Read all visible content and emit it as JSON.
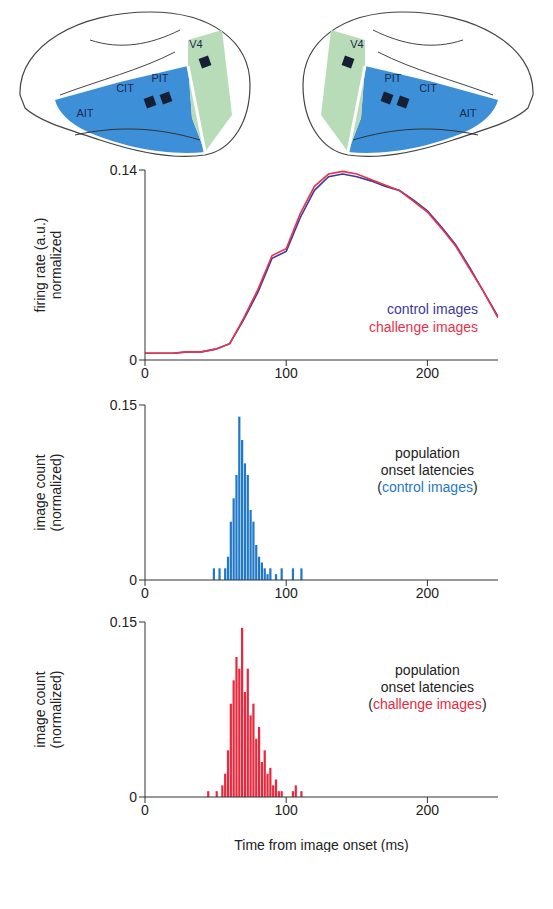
{
  "diagram": {
    "hemispheres": [
      {
        "regions": [
          "V4",
          "PIT",
          "CIT",
          "AIT"
        ]
      },
      {
        "regions": [
          "V4",
          "PIT",
          "CIT",
          "AIT"
        ]
      }
    ]
  },
  "chart_data": [
    {
      "type": "line",
      "ylabel": "firing rate (a.u.) normalized",
      "x": [
        0,
        10,
        20,
        30,
        40,
        50,
        60,
        70,
        80,
        90,
        100,
        110,
        120,
        130,
        140,
        150,
        160,
        170,
        180,
        190,
        200,
        210,
        220,
        230,
        240,
        250
      ],
      "series": [
        {
          "name": "control images",
          "color": "#3a3aa0",
          "values": [
            0.005,
            0.005,
            0.005,
            0.006,
            0.006,
            0.008,
            0.012,
            0.03,
            0.05,
            0.075,
            0.08,
            0.105,
            0.125,
            0.135,
            0.137,
            0.135,
            0.132,
            0.128,
            0.125,
            0.118,
            0.11,
            0.098,
            0.085,
            0.068,
            0.05,
            0.032
          ]
        },
        {
          "name": "challenge images",
          "color": "#e8334a",
          "values": [
            0.005,
            0.005,
            0.005,
            0.006,
            0.006,
            0.008,
            0.012,
            0.031,
            0.052,
            0.077,
            0.082,
            0.108,
            0.128,
            0.137,
            0.139,
            0.137,
            0.133,
            0.129,
            0.125,
            0.117,
            0.109,
            0.097,
            0.084,
            0.067,
            0.05,
            0.031
          ]
        }
      ],
      "xlim": [
        0,
        250
      ],
      "xticks": [
        0,
        100,
        200
      ],
      "ylim": [
        0,
        0.14
      ],
      "yticks": [
        0,
        0.14
      ],
      "legend": "lower right"
    },
    {
      "type": "histogram",
      "ylabel": "image count (normalized)",
      "annotation": "population onset latencies (control images)",
      "series_name": "control images",
      "bins": [
        44,
        46,
        48,
        50,
        52,
        54,
        56,
        58,
        60,
        62,
        64,
        66,
        68,
        70,
        72,
        74,
        76,
        78,
        80,
        82,
        84,
        86,
        88,
        90,
        92,
        94,
        96,
        98,
        100,
        102,
        104,
        106,
        108,
        110,
        112,
        114
      ],
      "values": [
        0,
        0,
        0.01,
        0,
        0.01,
        0,
        0.01,
        0.02,
        0.05,
        0.07,
        0.09,
        0.14,
        0.12,
        0.1,
        0.09,
        0.06,
        0.05,
        0.03,
        0.02,
        0.015,
        0.01,
        0.005,
        0.01,
        0,
        0.005,
        0,
        0.01,
        0,
        0,
        0,
        0.01,
        0,
        0,
        0.01,
        0
      ],
      "color": "#1f78c8",
      "xlim": [
        0,
        250
      ],
      "xticks": [
        0,
        100,
        200
      ],
      "ylim": [
        0,
        0.15
      ],
      "yticks": [
        0,
        0.15
      ]
    },
    {
      "type": "histogram",
      "ylabel": "image count (normalized)",
      "annotation": "population onset latencies (challenge images)",
      "series_name": "challenge images",
      "xlabel": "Time from image onset (ms)",
      "bins": [
        44,
        46,
        48,
        50,
        52,
        54,
        56,
        58,
        60,
        62,
        64,
        66,
        68,
        70,
        72,
        74,
        76,
        78,
        80,
        82,
        84,
        86,
        88,
        90,
        92,
        94,
        96,
        98,
        100,
        102,
        104,
        106,
        108,
        110,
        112,
        114
      ],
      "values": [
        0.005,
        0,
        0,
        0.005,
        0,
        0.01,
        0.02,
        0.04,
        0.08,
        0.1,
        0.12,
        0.11,
        0.145,
        0.09,
        0.11,
        0.07,
        0.08,
        0.05,
        0.06,
        0.03,
        0.04,
        0.02,
        0.025,
        0.01,
        0.015,
        0.005,
        0.005,
        0,
        0,
        0,
        0.005,
        0.01,
        0,
        0.005,
        0
      ],
      "color": "#e8283c",
      "xlim": [
        0,
        250
      ],
      "xticks": [
        0,
        100,
        200
      ],
      "ylim": [
        0,
        0.15
      ],
      "yticks": [
        0,
        0.15
      ]
    }
  ]
}
